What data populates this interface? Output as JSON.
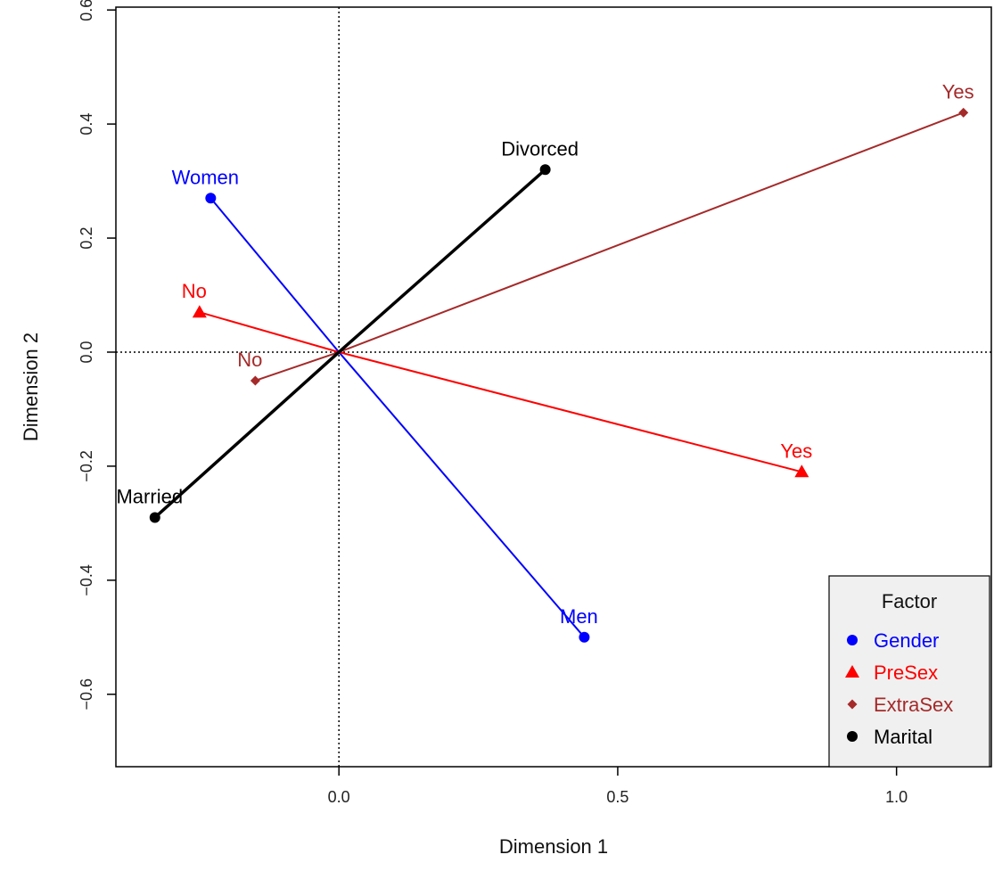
{
  "chart_data": {
    "type": "scatter",
    "title": "",
    "xlabel": "Dimension 1",
    "ylabel": "Dimension 2",
    "xlim": [
      -0.4,
      1.17
    ],
    "ylim": [
      -0.727,
      0.605
    ],
    "x_ticks": [
      "0.0",
      "0.5",
      "1.0"
    ],
    "y_ticks": [
      "0.6",
      "0.4",
      "0.2",
      "0.0",
      "−0.2",
      "−0.4",
      "−0.6"
    ],
    "reference_lines": {
      "x": 0,
      "y": 0,
      "style": "dotted"
    },
    "series": [
      {
        "name": "Gender",
        "color": "#0000ff",
        "marker": "circle",
        "points": [
          {
            "label": "Women",
            "x": -0.23,
            "y": 0.27
          },
          {
            "label": "Men",
            "x": 0.44,
            "y": -0.5
          }
        ]
      },
      {
        "name": "PreSex",
        "color": "#ff0000",
        "marker": "triangle",
        "points": [
          {
            "label": "No",
            "x": -0.25,
            "y": 0.07
          },
          {
            "label": "Yes",
            "x": 0.83,
            "y": -0.21
          }
        ]
      },
      {
        "name": "ExtraSex",
        "color": "#a52a2a",
        "marker": "diamond",
        "points": [
          {
            "label": "No",
            "x": -0.15,
            "y": -0.05
          },
          {
            "label": "Yes",
            "x": 1.12,
            "y": 0.42
          }
        ]
      },
      {
        "name": "Marital",
        "color": "#000000",
        "marker": "circle",
        "points": [
          {
            "label": "Divorced",
            "x": 0.37,
            "y": 0.32
          },
          {
            "label": "Married",
            "x": -0.33,
            "y": -0.29
          }
        ]
      }
    ],
    "legend": {
      "title": "Factor",
      "position": "bottom-right",
      "background": "#f0f0f0"
    }
  }
}
